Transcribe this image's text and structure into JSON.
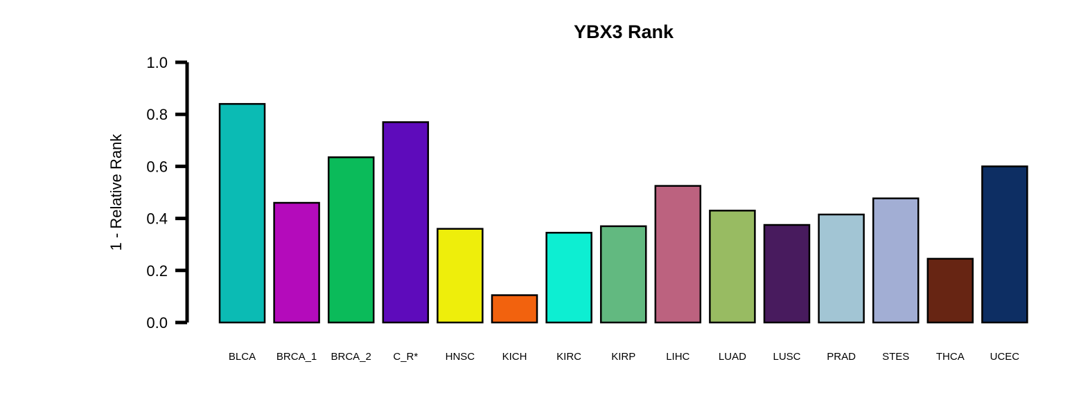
{
  "chart_data": {
    "type": "bar",
    "title": "YBX3 Rank",
    "xlabel": "",
    "ylabel": "1 - Relative Rank",
    "ylim": [
      0,
      1.0
    ],
    "yticks": [
      "0.0",
      "0.2",
      "0.4",
      "0.6",
      "0.8",
      "1.0"
    ],
    "categories": [
      "BLCA",
      "BRCA_1",
      "BRCA_2",
      "C_R*",
      "HNSC",
      "KICH",
      "KIRC",
      "KIRP",
      "LIHC",
      "LUAD",
      "LUSC",
      "PRAD",
      "STES",
      "THCA",
      "UCEC"
    ],
    "values": [
      0.84,
      0.46,
      0.635,
      0.77,
      0.36,
      0.105,
      0.345,
      0.37,
      0.525,
      0.43,
      0.375,
      0.415,
      0.477,
      0.245,
      0.6
    ],
    "colors": [
      "#0BBBB4",
      "#B40BBB",
      "#0BBB5A",
      "#5E0BBB",
      "#EEEE0B",
      "#F2620E",
      "#0DEED2",
      "#62B980",
      "#BC627F",
      "#98BB62",
      "#481B5E",
      "#A2C5D4",
      "#A2AED4",
      "#672513",
      "#0D2E63"
    ],
    "grid": false,
    "legend": "none"
  }
}
